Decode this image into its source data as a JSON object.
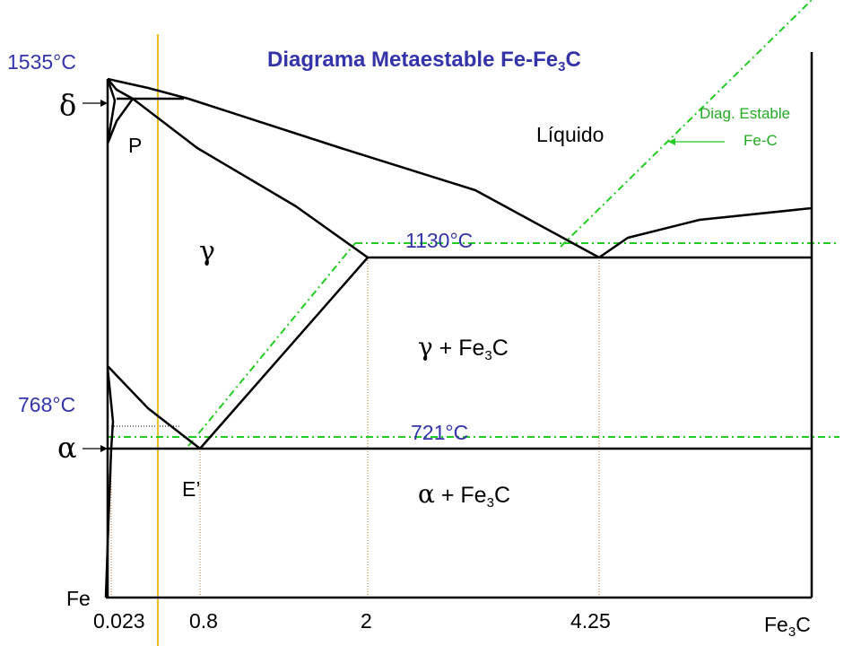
{
  "title": {
    "main": "Diagrama Metaestable Fe-Fe",
    "sub": "3",
    "tail": "C"
  },
  "temperatures": {
    "melt": "1535°C",
    "eutectic": "1130°C",
    "curie": "768°C",
    "eutectoid": "721°C"
  },
  "phases": {
    "delta": "δ",
    "alpha": "α",
    "gamma": "γ",
    "liquid": "Líquido",
    "gamma_fe3c_symbol": "γ",
    "gamma_fe3c_text": " + Fe",
    "alpha_fe3c_symbol": "α",
    "alpha_fe3c_text": " + Fe",
    "fe3c_sub": "3",
    "fe3c_c": "C"
  },
  "points": {
    "peritectic": "P",
    "eutectoid": "E’"
  },
  "composition_axis": {
    "left_end": "Fe",
    "right_end_main": "Fe",
    "right_end_sub": "3",
    "right_end_c": "C",
    "ticks": [
      "0.023",
      "0.8",
      "2",
      "4.25"
    ]
  },
  "stable_diagram_note": {
    "line1": "Diag.  Estable",
    "line2": "Fe-C"
  },
  "colors": {
    "phase_lines": "#000000",
    "temperature_labels": "#3333aa",
    "stable_diagram": "#22cc22",
    "composition_markers": "#d2691e",
    "vertical_marker": "#f0c020"
  }
}
